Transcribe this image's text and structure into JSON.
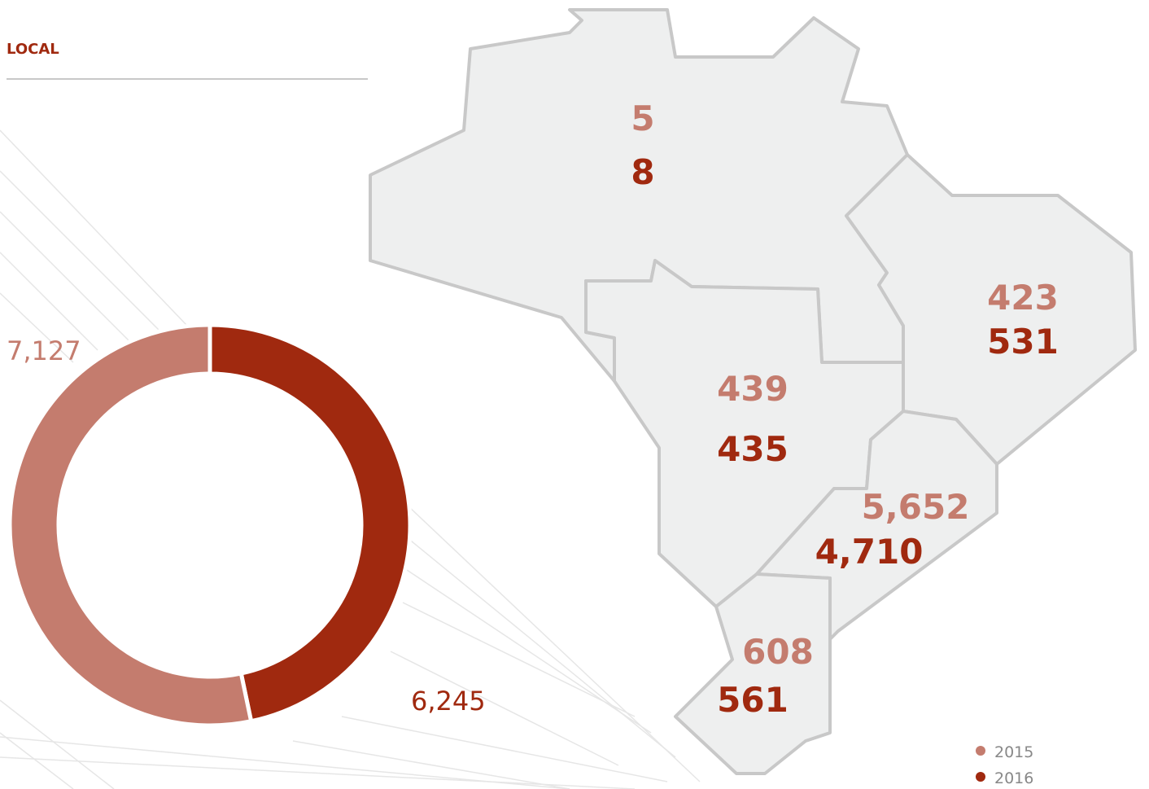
{
  "chart_data": {
    "type": "donut",
    "title": "LOCAL",
    "series": [
      {
        "name": "2015",
        "color": "#c47c6e",
        "value": 7127,
        "value_label": "7,127",
        "regions": [
          5,
          439,
          423,
          5652,
          608
        ],
        "region_labels": [
          "5",
          "439",
          "423",
          "5,652",
          "608"
        ]
      },
      {
        "name": "2016",
        "color": "#a0290f",
        "value": 6245,
        "value_label": "6,245",
        "regions": [
          8,
          435,
          531,
          4710,
          561
        ],
        "region_labels": [
          "8",
          "435",
          "531",
          "4,710",
          "561"
        ]
      }
    ]
  }
}
